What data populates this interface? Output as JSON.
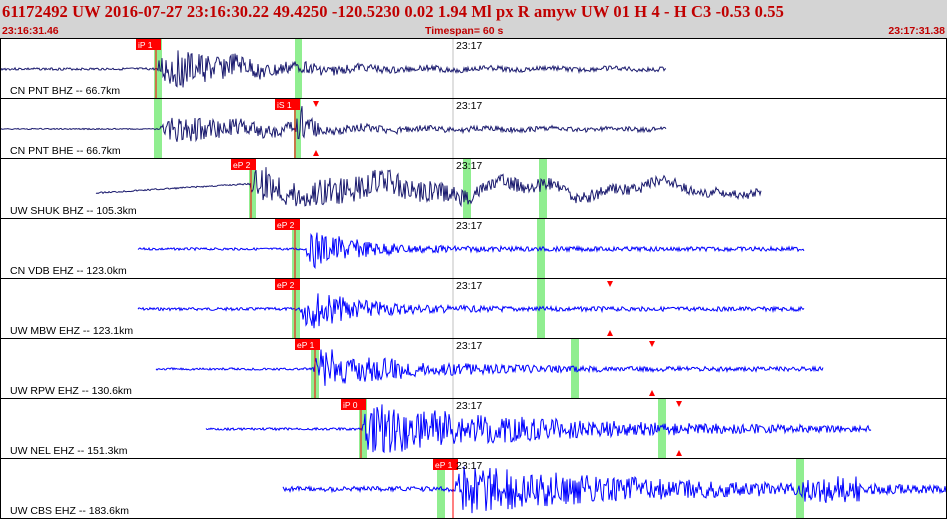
{
  "header": {
    "title": "61172492 UW 2016-07-27 23:16:30.22    49.4250 -120.5230    0.02  1.94 Ml  px  R amyw      UW 01  H   4  -  H C3   -0.53  0.55",
    "start_time": "23:16:31.46",
    "timespan": "Timespan=  60 s",
    "end_time": "23:17:31.38"
  },
  "colors": {
    "header_bg": "#d4d4d4",
    "header_text": "#c00000",
    "trace_dark": "#1a1a6e",
    "trace_blue": "#0000ff",
    "pick_flag": "#ff0000",
    "window_band": "#90ee90"
  },
  "minute_label": "23:17",
  "channels": [
    {
      "label": "CN PNT BHZ -- 66.7km",
      "pick": "iP 1",
      "trace_color": "dark"
    },
    {
      "label": "CN PNT BHE -- 66.7km",
      "pick": "iS 1",
      "trace_color": "dark"
    },
    {
      "label": "UW SHUK BHZ -- 105.3km",
      "pick": "eP 2",
      "trace_color": "dark"
    },
    {
      "label": "CN VDB EHZ -- 123.0km",
      "pick": "eP 2",
      "trace_color": "blue"
    },
    {
      "label": "UW MBW EHZ -- 123.1km",
      "pick": "eP 2",
      "trace_color": "blue"
    },
    {
      "label": "UW RPW EHZ -- 130.6km",
      "pick": "eP 1",
      "trace_color": "blue"
    },
    {
      "label": "UW NEL EHZ -- 151.3km",
      "pick": "iP 0",
      "trace_color": "blue"
    },
    {
      "label": "UW CBS EHZ -- 183.6km",
      "pick": "eP 1",
      "trace_color": "blue"
    }
  ]
}
